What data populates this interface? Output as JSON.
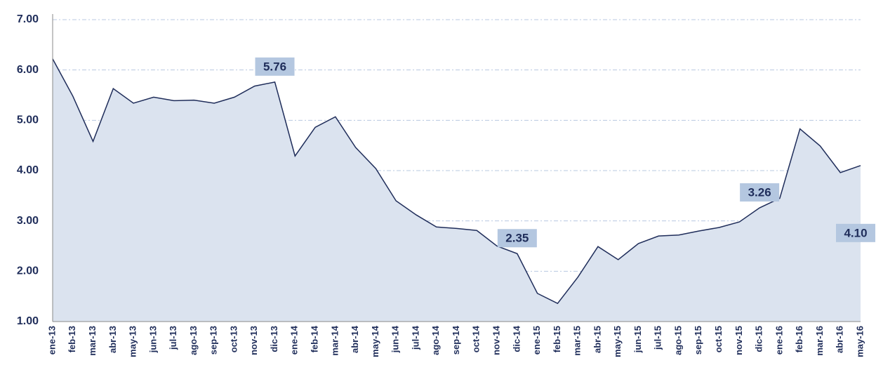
{
  "chart_data": {
    "type": "area",
    "categories": [
      "ene-13",
      "feb-13",
      "mar-13",
      "abr-13",
      "may-13",
      "jun-13",
      "jul-13",
      "ago-13",
      "sep-13",
      "oct-13",
      "nov-13",
      "dic-13",
      "ene-14",
      "feb-14",
      "mar-14",
      "abr-14",
      "may-14",
      "jun-14",
      "jul-14",
      "ago-14",
      "sep-14",
      "oct-14",
      "nov-14",
      "dic-14",
      "ene-15",
      "feb-15",
      "mar-15",
      "abr-15",
      "may-15",
      "jun-15",
      "jul-15",
      "ago-15",
      "sep-15",
      "oct-15",
      "nov-15",
      "dic-15",
      "ene-16",
      "feb-16",
      "mar-16",
      "abr-16",
      "may-16"
    ],
    "values": [
      6.22,
      5.48,
      4.58,
      5.63,
      5.34,
      5.46,
      5.39,
      5.4,
      5.34,
      5.46,
      5.68,
      5.76,
      4.29,
      4.86,
      5.07,
      4.46,
      4.04,
      3.4,
      3.12,
      2.88,
      2.85,
      2.81,
      2.5,
      2.35,
      1.56,
      1.36,
      1.88,
      2.49,
      2.23,
      2.55,
      2.7,
      2.72,
      2.8,
      2.87,
      2.98,
      3.26,
      3.45,
      4.83,
      4.49,
      3.96,
      4.1
    ],
    "value_labels": [
      null,
      null,
      null,
      null,
      null,
      null,
      null,
      null,
      null,
      null,
      null,
      "5.76",
      null,
      null,
      null,
      null,
      null,
      null,
      null,
      null,
      null,
      null,
      null,
      "2.35",
      null,
      null,
      null,
      null,
      null,
      null,
      null,
      null,
      null,
      null,
      null,
      "3.26",
      null,
      null,
      null,
      null,
      "4.10"
    ],
    "color": "#1f2d5a",
    "fill": "#dbe3ef",
    "ylim": [
      1,
      7
    ],
    "yticks": [
      {
        "value": 1,
        "label": "1.00"
      },
      {
        "value": 2,
        "label": "2.00"
      },
      {
        "value": 3,
        "label": "3.00"
      },
      {
        "value": 4,
        "label": "4.00"
      },
      {
        "value": 5,
        "label": "5.00"
      },
      {
        "value": 6,
        "label": "6.00"
      },
      {
        "value": 7,
        "label": "7.00"
      }
    ],
    "grid": true
  }
}
